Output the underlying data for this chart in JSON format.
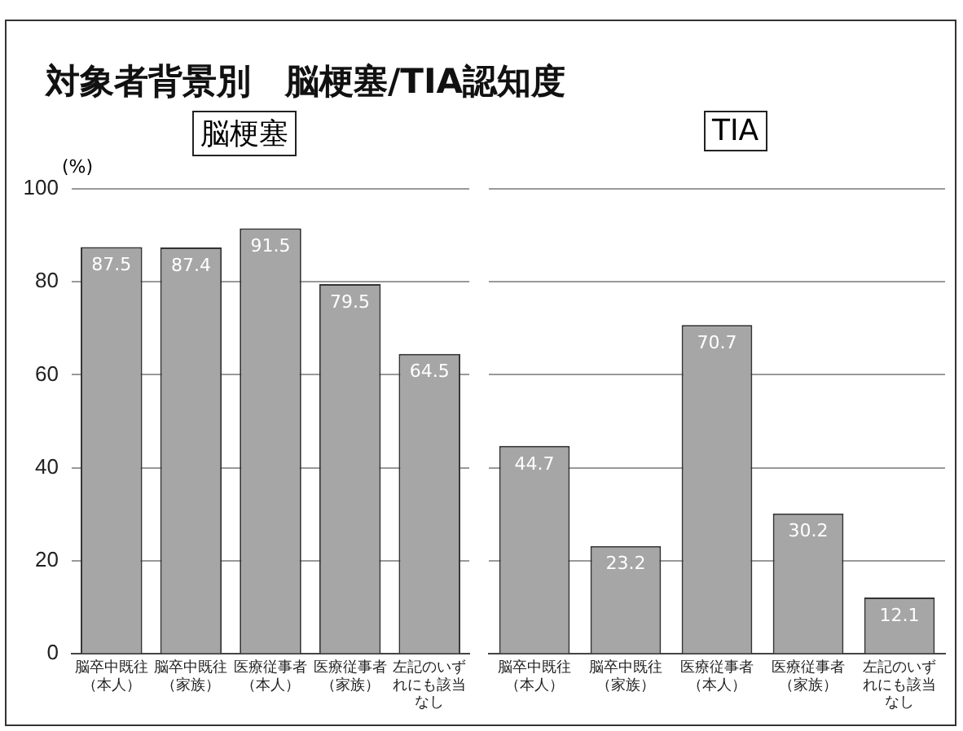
{
  "chart_data": [
    {
      "type": "bar",
      "title": "対象者背景別　脳梗塞/TIA認知度",
      "subtitle": "脳梗塞",
      "ylabel": "(%)",
      "categories": [
        "脳卒中既往（本人）",
        "脳卒中既往（家族）",
        "医療従事者（本人）",
        "医療従事者（家族）",
        "左記のいずれにも該当なし"
      ],
      "values": [
        87.5,
        87.4,
        91.5,
        79.5,
        64.5
      ],
      "color": "#a6a6a6",
      "ylim": [
        0,
        100
      ],
      "yticks": [
        0,
        20,
        40,
        60,
        80,
        100
      ],
      "grid": "y",
      "data_labels": true,
      "legend": false
    },
    {
      "type": "bar",
      "subtitle": "TIA",
      "categories": [
        "脳卒中既往（本人）",
        "脳卒中既往（家族）",
        "医療従事者（本人）",
        "医療従事者（家族）",
        "左記のいずれにも該当なし"
      ],
      "values": [
        44.7,
        23.2,
        70.7,
        30.2,
        12.1
      ],
      "color": "#a6a6a6",
      "ylim": [
        0,
        100
      ],
      "yticks": [
        0,
        20,
        40,
        60,
        80,
        100
      ],
      "grid": "y",
      "data_labels": true,
      "legend": false,
      "tick_labels": "x"
    }
  ]
}
